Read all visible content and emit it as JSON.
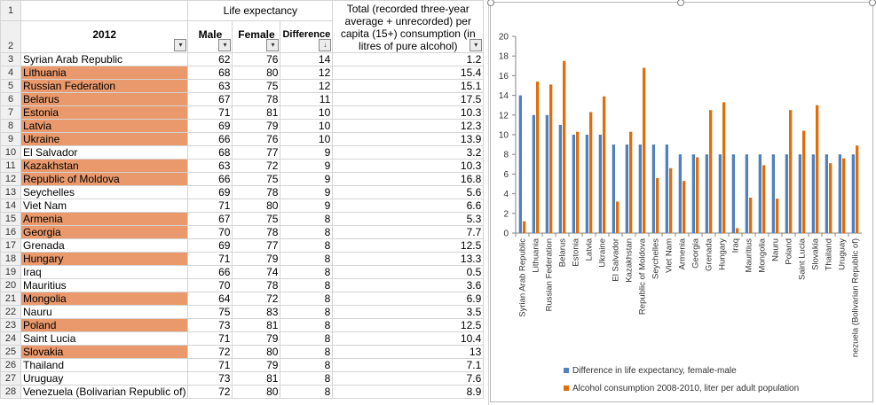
{
  "sheet": {
    "row1_number": "1",
    "row2_number": "2",
    "life_expectancy_title": "Life expectancy",
    "col_year": "2012",
    "col_male": "Male",
    "col_female": "Female",
    "col_difference": "Difference",
    "col_alcohol": "Total (recorded three-year average + unrecorded) per capita (15+) consumption (in litres of pure alcohol)",
    "rows": [
      {
        "n": "3",
        "country": "Syrian Arab Republic",
        "male": "62",
        "female": "76",
        "diff": "14",
        "alc": "1.2",
        "hl": false
      },
      {
        "n": "4",
        "country": "Lithuania",
        "male": "68",
        "female": "80",
        "diff": "12",
        "alc": "15.4",
        "hl": true
      },
      {
        "n": "5",
        "country": "Russian Federation",
        "male": "63",
        "female": "75",
        "diff": "12",
        "alc": "15.1",
        "hl": true
      },
      {
        "n": "6",
        "country": "Belarus",
        "male": "67",
        "female": "78",
        "diff": "11",
        "alc": "17.5",
        "hl": true
      },
      {
        "n": "7",
        "country": "Estonia",
        "male": "71",
        "female": "81",
        "diff": "10",
        "alc": "10.3",
        "hl": true
      },
      {
        "n": "8",
        "country": "Latvia",
        "male": "69",
        "female": "79",
        "diff": "10",
        "alc": "12.3",
        "hl": true
      },
      {
        "n": "9",
        "country": "Ukraine",
        "male": "66",
        "female": "76",
        "diff": "10",
        "alc": "13.9",
        "hl": true
      },
      {
        "n": "10",
        "country": "El Salvador",
        "male": "68",
        "female": "77",
        "diff": "9",
        "alc": "3.2",
        "hl": false
      },
      {
        "n": "11",
        "country": "Kazakhstan",
        "male": "63",
        "female": "72",
        "diff": "9",
        "alc": "10.3",
        "hl": true
      },
      {
        "n": "12",
        "country": "Republic of Moldova",
        "male": "66",
        "female": "75",
        "diff": "9",
        "alc": "16.8",
        "hl": true
      },
      {
        "n": "13",
        "country": "Seychelles",
        "male": "69",
        "female": "78",
        "diff": "9",
        "alc": "5.6",
        "hl": false
      },
      {
        "n": "14",
        "country": "Viet Nam",
        "male": "71",
        "female": "80",
        "diff": "9",
        "alc": "6.6",
        "hl": false
      },
      {
        "n": "15",
        "country": "Armenia",
        "male": "67",
        "female": "75",
        "diff": "8",
        "alc": "5.3",
        "hl": true
      },
      {
        "n": "16",
        "country": "Georgia",
        "male": "70",
        "female": "78",
        "diff": "8",
        "alc": "7.7",
        "hl": true
      },
      {
        "n": "17",
        "country": "Grenada",
        "male": "69",
        "female": "77",
        "diff": "8",
        "alc": "12.5",
        "hl": false
      },
      {
        "n": "18",
        "country": "Hungary",
        "male": "71",
        "female": "79",
        "diff": "8",
        "alc": "13.3",
        "hl": true
      },
      {
        "n": "19",
        "country": "Iraq",
        "male": "66",
        "female": "74",
        "diff": "8",
        "alc": "0.5",
        "hl": false
      },
      {
        "n": "20",
        "country": "Mauritius",
        "male": "70",
        "female": "78",
        "diff": "8",
        "alc": "3.6",
        "hl": false
      },
      {
        "n": "21",
        "country": "Mongolia",
        "male": "64",
        "female": "72",
        "diff": "8",
        "alc": "6.9",
        "hl": true
      },
      {
        "n": "22",
        "country": "Nauru",
        "male": "75",
        "female": "83",
        "diff": "8",
        "alc": "3.5",
        "hl": false
      },
      {
        "n": "23",
        "country": "Poland",
        "male": "73",
        "female": "81",
        "diff": "8",
        "alc": "12.5",
        "hl": true
      },
      {
        "n": "24",
        "country": "Saint Lucia",
        "male": "71",
        "female": "79",
        "diff": "8",
        "alc": "10.4",
        "hl": false
      },
      {
        "n": "25",
        "country": "Slovakia",
        "male": "72",
        "female": "80",
        "diff": "8",
        "alc": "13",
        "hl": true
      },
      {
        "n": "26",
        "country": "Thailand",
        "male": "71",
        "female": "79",
        "diff": "8",
        "alc": "7.1",
        "hl": false
      },
      {
        "n": "27",
        "country": "Uruguay",
        "male": "73",
        "female": "81",
        "diff": "8",
        "alc": "7.6",
        "hl": false
      },
      {
        "n": "28",
        "country": "Venezuela (Bolivarian Republic of)",
        "male": "72",
        "female": "80",
        "diff": "8",
        "alc": "8.9",
        "hl": false
      }
    ]
  },
  "colors": {
    "highlight": "#e9996b",
    "series_diff": "#4f81bd",
    "series_alcohol": "#e36c0a"
  },
  "chart_data": {
    "type": "bar",
    "categories": [
      "Syrian Arab Republic",
      "Lithuania",
      "Russian Federation",
      "Belarus",
      "Estonia",
      "Latvia",
      "Ukraine",
      "El Salvador",
      "Kazakhstan",
      "Republic of Moldova",
      "Seychelles",
      "Viet Nam",
      "Armenia",
      "Georgia",
      "Grenada",
      "Hungary",
      "Iraq",
      "Mauritius",
      "Mongolia",
      "Nauru",
      "Poland",
      "Saint Lucia",
      "Slovakia",
      "Thailand",
      "Uruguay",
      "Venezuela (Bolivarian Republic of)"
    ],
    "series": [
      {
        "name": "Difference in life expectancy, female-male",
        "values": [
          14,
          12,
          12,
          11,
          10,
          10,
          10,
          9,
          9,
          9,
          9,
          9,
          8,
          8,
          8,
          8,
          8,
          8,
          8,
          8,
          8,
          8,
          8,
          8,
          8,
          8
        ]
      },
      {
        "name": "Alcohol consumption 2008-2010, liter per adult population",
        "values": [
          1.2,
          15.4,
          15.1,
          17.5,
          10.3,
          12.3,
          13.9,
          3.2,
          10.3,
          16.8,
          5.6,
          6.6,
          5.3,
          7.7,
          12.5,
          13.3,
          0.5,
          3.6,
          6.9,
          3.5,
          12.5,
          10.4,
          13,
          7.1,
          7.6,
          8.9
        ]
      }
    ],
    "ylim": [
      0,
      20
    ],
    "yticks": [
      0,
      2,
      4,
      6,
      8,
      10,
      12,
      14,
      16,
      18,
      20
    ],
    "grid": false,
    "legend": "bottom"
  }
}
